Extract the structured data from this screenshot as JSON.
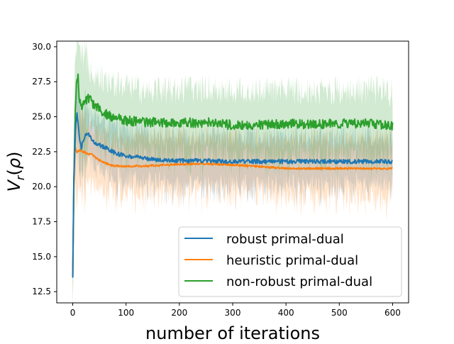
{
  "chart_data": {
    "type": "line",
    "title": "",
    "xlabel": "number of iterations",
    "ylabel": "V_r(ρ)",
    "xlim": [
      -30,
      630
    ],
    "ylim": [
      11.7,
      30.4
    ],
    "xticks": [
      0,
      100,
      200,
      300,
      400,
      500,
      600
    ],
    "yticks": [
      12.5,
      15.0,
      17.5,
      20.0,
      22.5,
      25.0,
      27.5,
      30.0
    ],
    "xtick_labels": [
      "0",
      "100",
      "200",
      "300",
      "400",
      "500",
      "600"
    ],
    "ytick_labels": [
      "12.5",
      "15.0",
      "17.5",
      "20.0",
      "22.5",
      "25.0",
      "27.5",
      "30.0"
    ],
    "grid": false,
    "legend_position": "lower-right",
    "shaded_band": true,
    "series": [
      {
        "name": "robust primal-dual",
        "color": "#1f77b4",
        "points": [
          [
            0,
            13.5
          ],
          [
            2,
            20.5
          ],
          [
            5,
            24.0
          ],
          [
            8,
            25.3
          ],
          [
            10,
            24.6
          ],
          [
            13,
            23.2
          ],
          [
            16,
            22.8
          ],
          [
            20,
            23.3
          ],
          [
            25,
            23.8
          ],
          [
            30,
            23.7
          ],
          [
            35,
            23.5
          ],
          [
            40,
            23.2
          ],
          [
            50,
            23.0
          ],
          [
            60,
            22.8
          ],
          [
            70,
            22.6
          ],
          [
            80,
            22.4
          ],
          [
            90,
            22.3
          ],
          [
            100,
            22.2
          ],
          [
            120,
            22.1
          ],
          [
            140,
            22.0
          ],
          [
            160,
            21.9
          ],
          [
            180,
            21.85
          ],
          [
            200,
            21.85
          ],
          [
            250,
            21.85
          ],
          [
            300,
            21.8
          ],
          [
            350,
            21.8
          ],
          [
            400,
            21.8
          ],
          [
            450,
            21.8
          ],
          [
            500,
            21.8
          ],
          [
            550,
            21.8
          ],
          [
            600,
            21.8
          ]
        ],
        "noise": 0.15,
        "band_width": 1.8
      },
      {
        "name": "heuristic primal-dual",
        "color": "#ff7f0e",
        "points": [
          [
            0,
            13.5
          ],
          [
            2,
            20.0
          ],
          [
            4,
            22.8
          ],
          [
            8,
            22.5
          ],
          [
            15,
            22.6
          ],
          [
            25,
            22.4
          ],
          [
            35,
            22.3
          ],
          [
            50,
            21.9
          ],
          [
            60,
            21.7
          ],
          [
            75,
            21.5
          ],
          [
            100,
            21.45
          ],
          [
            150,
            21.5
          ],
          [
            200,
            21.6
          ],
          [
            250,
            21.65
          ],
          [
            300,
            21.55
          ],
          [
            350,
            21.45
          ],
          [
            400,
            21.3
          ],
          [
            450,
            21.3
          ],
          [
            500,
            21.3
          ],
          [
            550,
            21.3
          ],
          [
            600,
            21.3
          ]
        ],
        "noise": 0.07,
        "band_width": 2.0
      },
      {
        "name": "non-robust primal-dual",
        "color": "#2ca02c",
        "points": [
          [
            0,
            13.5
          ],
          [
            2,
            20.0
          ],
          [
            4,
            24.5
          ],
          [
            7,
            27.4
          ],
          [
            10,
            27.7
          ],
          [
            13,
            26.0
          ],
          [
            16,
            25.8
          ],
          [
            22,
            26.0
          ],
          [
            30,
            26.3
          ],
          [
            40,
            25.8
          ],
          [
            50,
            25.5
          ],
          [
            60,
            25.2
          ],
          [
            80,
            24.9
          ],
          [
            100,
            24.7
          ],
          [
            150,
            24.6
          ],
          [
            200,
            24.55
          ],
          [
            250,
            24.6
          ],
          [
            300,
            24.4
          ],
          [
            350,
            24.4
          ],
          [
            400,
            24.5
          ],
          [
            450,
            24.45
          ],
          [
            500,
            24.5
          ],
          [
            550,
            24.5
          ],
          [
            600,
            24.4
          ]
        ],
        "noise": 0.35,
        "band_width": 2.4
      }
    ]
  }
}
